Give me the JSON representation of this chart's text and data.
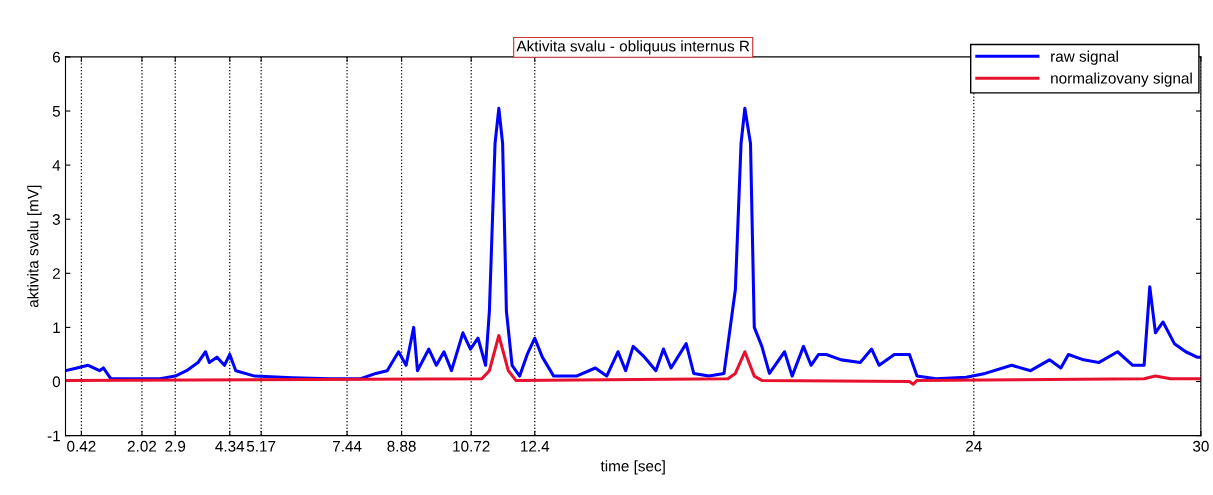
{
  "chart_data": {
    "type": "line",
    "title": "Aktivita svalu - obliquus internus R",
    "xlabel": "time [sec]",
    "ylabel": "aktivita svalu [mV]",
    "xlim": [
      0,
      30
    ],
    "ylim": [
      -1,
      6
    ],
    "xticks": [
      0.42,
      2.02,
      2.9,
      4.34,
      5.17,
      7.44,
      8.88,
      10.72,
      12.4,
      24,
      30
    ],
    "yticks": [
      -1,
      0,
      1,
      2,
      3,
      4,
      5,
      6
    ],
    "grid": "x",
    "legend": "top right",
    "line_style": "solid",
    "marker": "none",
    "series": [
      {
        "name": "raw signal",
        "color": "#0000ff",
        "x": [
          0,
          0.3,
          0.6,
          0.9,
          1.0,
          1.2,
          2.0,
          2.5,
          2.9,
          3.2,
          3.5,
          3.7,
          3.8,
          4.0,
          4.2,
          4.34,
          4.5,
          5.0,
          6.0,
          7.0,
          7.8,
          8.2,
          8.5,
          8.8,
          9.0,
          9.2,
          9.3,
          9.6,
          9.8,
          10.0,
          10.2,
          10.5,
          10.7,
          10.9,
          11.1,
          11.2,
          11.35,
          11.45,
          11.55,
          11.65,
          11.8,
          12.0,
          12.2,
          12.4,
          12.6,
          12.9,
          13.5,
          14.0,
          14.3,
          14.6,
          14.8,
          15.0,
          15.3,
          15.6,
          15.8,
          16.0,
          16.4,
          16.6,
          17.0,
          17.4,
          17.7,
          17.85,
          17.95,
          18.1,
          18.2,
          18.4,
          18.6,
          19.0,
          19.2,
          19.5,
          19.7,
          19.9,
          20.1,
          20.5,
          21.0,
          21.3,
          21.5,
          21.9,
          22.3,
          22.5,
          23.0,
          23.8,
          24.3,
          25.0,
          25.5,
          26.0,
          26.3,
          26.5,
          26.9,
          27.3,
          27.8,
          28.2,
          28.5,
          28.65,
          28.8,
          29.0,
          29.3,
          29.6,
          29.9,
          30.0
        ],
        "values": [
          0.2,
          0.25,
          0.3,
          0.2,
          0.25,
          0.05,
          0.05,
          0.05,
          0.1,
          0.2,
          0.35,
          0.55,
          0.35,
          0.45,
          0.3,
          0.5,
          0.2,
          0.1,
          0.07,
          0.05,
          0.05,
          0.15,
          0.2,
          0.55,
          0.3,
          1.0,
          0.2,
          0.6,
          0.3,
          0.55,
          0.2,
          0.9,
          0.6,
          0.8,
          0.3,
          1.3,
          4.4,
          5.05,
          4.4,
          1.3,
          0.3,
          0.1,
          0.5,
          0.8,
          0.45,
          0.1,
          0.1,
          0.25,
          0.1,
          0.55,
          0.2,
          0.65,
          0.45,
          0.2,
          0.6,
          0.25,
          0.7,
          0.15,
          0.1,
          0.15,
          1.7,
          4.4,
          5.05,
          4.4,
          1.0,
          0.65,
          0.15,
          0.55,
          0.1,
          0.65,
          0.3,
          0.5,
          0.5,
          0.4,
          0.35,
          0.6,
          0.3,
          0.5,
          0.5,
          0.1,
          0.05,
          0.08,
          0.15,
          0.3,
          0.2,
          0.4,
          0.25,
          0.5,
          0.4,
          0.35,
          0.55,
          0.3,
          0.3,
          1.75,
          0.9,
          1.1,
          0.7,
          0.55,
          0.45,
          0.45
        ]
      },
      {
        "name": "normalizovany signal",
        "color": "#e8112d",
        "x": [
          0,
          11.0,
          11.2,
          11.45,
          11.7,
          11.9,
          17.5,
          17.7,
          17.95,
          18.2,
          18.4,
          22.3,
          22.4,
          22.5,
          28.5,
          28.8,
          29.2,
          30
        ],
        "values": [
          0.02,
          0.05,
          0.2,
          0.85,
          0.2,
          0.02,
          0.05,
          0.15,
          0.55,
          0.1,
          0.02,
          0.0,
          -0.05,
          0.02,
          0.05,
          0.1,
          0.05,
          0.05
        ]
      }
    ]
  }
}
